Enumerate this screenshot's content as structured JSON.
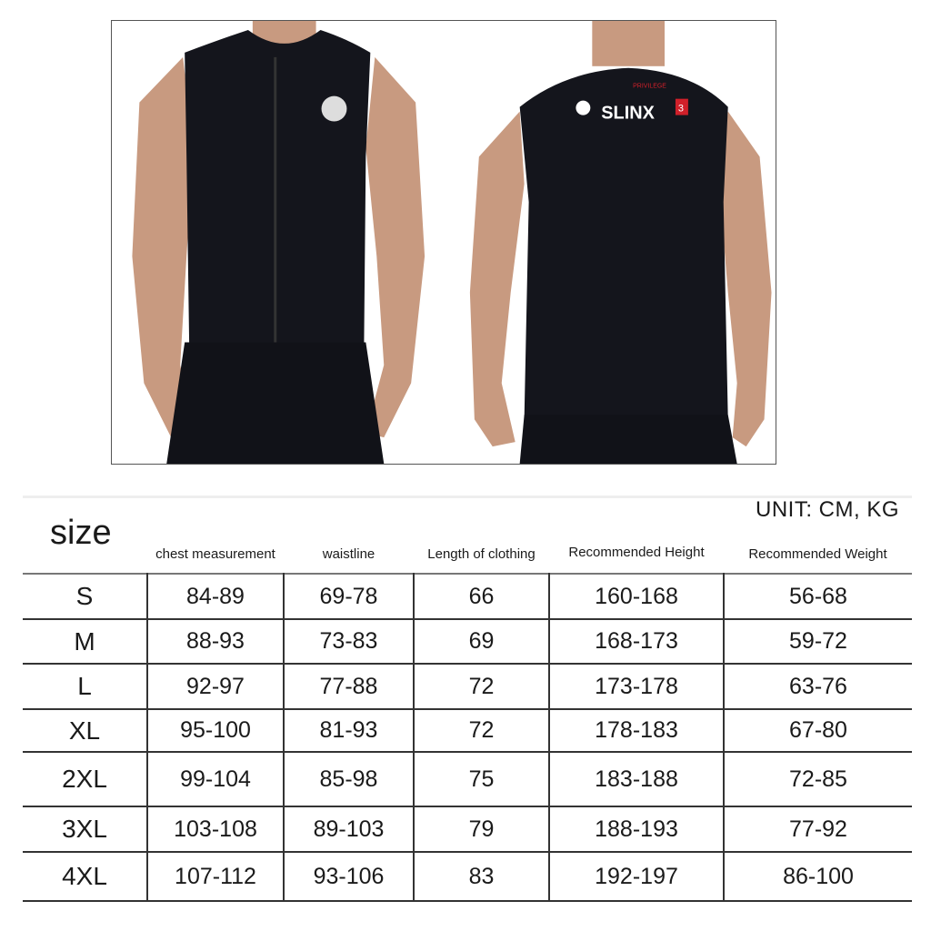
{
  "product_photo": {
    "logo_text": {
      "brand": "SLINX",
      "tagline": "PRIVILEGE",
      "badge": "3"
    },
    "colors": {
      "vest": "#14151c",
      "skin": "#c89a80",
      "logo_red": "#d0202a"
    }
  },
  "size_chart": {
    "unit_label": "UNIT: CM, KG",
    "size_label": "size",
    "columns": [
      "chest measurement",
      "waistline",
      "Length of clothing",
      "Recommended Height",
      "Recommended Weight"
    ],
    "rows": [
      {
        "size": "S",
        "values": [
          "84-89",
          "69-78",
          "66",
          "160-168",
          "56-68"
        ]
      },
      {
        "size": "M",
        "values": [
          "88-93",
          "73-83",
          "69",
          "168-173",
          "59-72"
        ]
      },
      {
        "size": "L",
        "values": [
          "92-97",
          "77-88",
          "72",
          "173-178",
          "63-76"
        ]
      },
      {
        "size": "XL",
        "values": [
          "95-100",
          "81-93",
          "72",
          "178-183",
          "67-80"
        ]
      },
      {
        "size": "2XL",
        "values": [
          "99-104",
          "85-98",
          "75",
          "183-188",
          "72-85"
        ]
      },
      {
        "size": "3XL",
        "values": [
          "103-108",
          "89-103",
          "79",
          "188-193",
          "77-92"
        ]
      },
      {
        "size": "4XL",
        "values": [
          "107-112",
          "93-106",
          "83",
          "192-197",
          "86-100"
        ]
      }
    ]
  }
}
